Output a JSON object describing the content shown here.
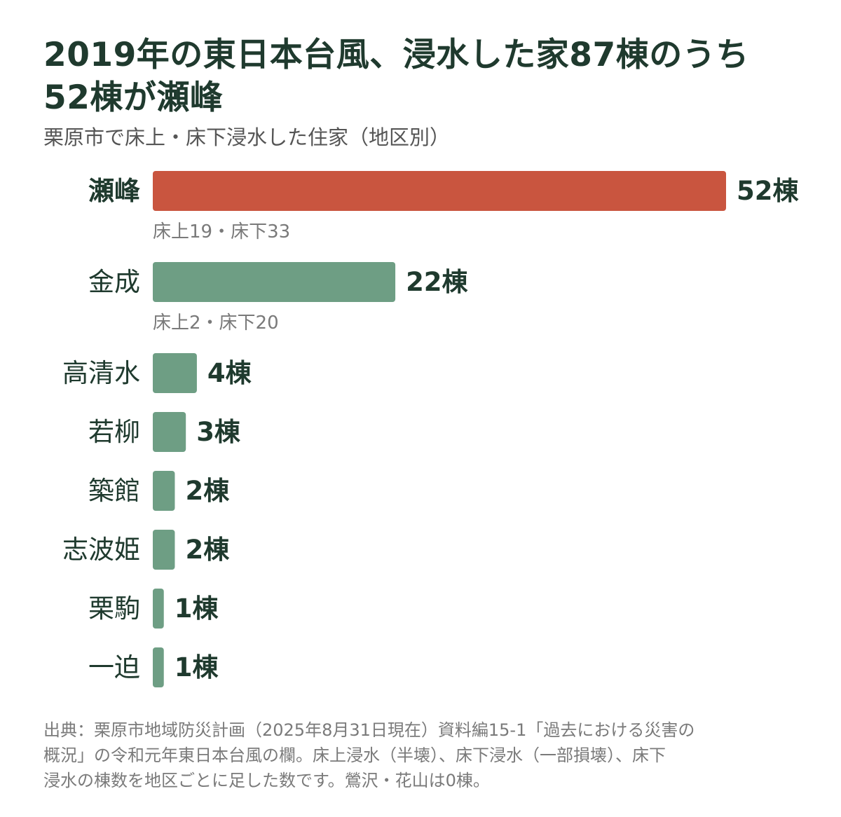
{
  "title_line1": "2019年の東日本台風、浸水した家87棟のうち",
  "title_line2": "52棟が瀬峰",
  "subtitle": "栗原市で床上・床下浸水した住家（地区別）",
  "colors": {
    "highlight": "#c9553f",
    "default": "#6e9e84",
    "text": "#1f3a2e",
    "muted": "#7a7a7a"
  },
  "chart_data": {
    "type": "bar",
    "orientation": "horizontal",
    "categories": [
      "瀬峰",
      "金成",
      "高清水",
      "若柳",
      "築館",
      "志波姫",
      "栗駒",
      "一迫"
    ],
    "values": [
      52,
      22,
      4,
      3,
      2,
      2,
      1,
      1
    ],
    "value_labels": [
      "52棟",
      "22棟",
      "4棟",
      "3棟",
      "2棟",
      "2棟",
      "1棟",
      "1棟"
    ],
    "breakdowns": [
      "床上19・床下33",
      "床上2・床下20",
      "",
      "",
      "",
      "",
      "",
      ""
    ],
    "highlight_index": 0,
    "xlim": [
      0,
      52
    ]
  },
  "footnote_lines": [
    "出典：栗原市地域防災計画（2025年8月31日現在）資料編15-1「過去における災害の",
    "概況」の令和元年東日本台風の欄。床上浸水（半壊）、床下浸水（一部損壊）、床下",
    "浸水の棟数を地区ごとに足した数です。鶯沢・花山は0棟。"
  ]
}
